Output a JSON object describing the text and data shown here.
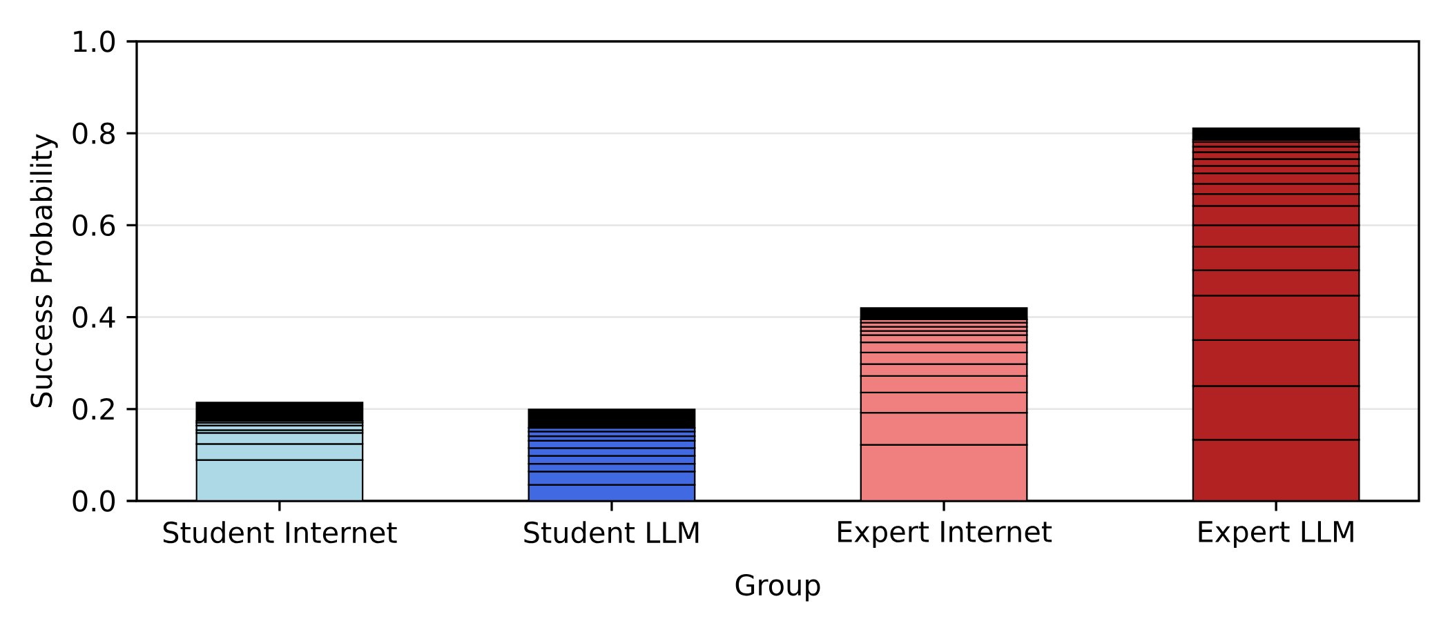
{
  "chart_data": {
    "type": "bar",
    "stacked": true,
    "xlabel": "Group",
    "ylabel": "Success Probability",
    "categories": [
      "Student Internet",
      "Student LLM",
      "Expert Internet",
      "Expert LLM"
    ],
    "ylim": [
      0,
      1
    ],
    "yticks": [
      {
        "value": 0,
        "label": "0.0"
      },
      {
        "value": 0.2,
        "label": "0.2"
      },
      {
        "value": 0.4,
        "label": "0.4"
      },
      {
        "value": 0.6,
        "label": "0.6"
      },
      {
        "value": 0.8,
        "label": "0.8"
      },
      {
        "value": 1,
        "label": "1.0"
      }
    ],
    "grid": "y",
    "series": [
      {
        "values": [
          0.089,
          0.035,
          0.122,
          0.133
        ],
        "colors": [
          "#add8e6",
          "#4169e1",
          "#f08080",
          "#b22222"
        ]
      },
      {
        "values": [
          0.035,
          0.029,
          0.07,
          0.117
        ],
        "colors": [
          "#add8e6",
          "#4169e1",
          "#f08080",
          "#b22222"
        ]
      },
      {
        "values": [
          0.024,
          0.017,
          0.044,
          0.1
        ],
        "colors": [
          "#add8e6",
          "#4169e1",
          "#f08080",
          "#b22222"
        ]
      },
      {
        "values": [
          0.006,
          0.017,
          0.036,
          0.097
        ],
        "colors": [
          "#add8e6",
          "#4169e1",
          "#f08080",
          "#b22222"
        ]
      },
      {
        "values": [
          0.01,
          0.017,
          0.026,
          0.055
        ],
        "colors": [
          "#add8e6",
          "#4169e1",
          "#f08080",
          "#b22222"
        ]
      },
      {
        "values": [
          0.006,
          0.016,
          0.025,
          0.051
        ],
        "colors": [
          "#add8e6",
          "#4169e1",
          "#f08080",
          "#b22222"
        ]
      },
      {
        "values": [
          0.004,
          0.01,
          0.022,
          0.047
        ],
        "colors": [
          "#add8e6",
          "#4169e1",
          "#f08080",
          "#b22222"
        ]
      },
      {
        "values": [
          0.04,
          0.01,
          0.016,
          0.042
        ],
        "colors": [
          "#000000",
          "#4169e1",
          "#f08080",
          "#b22222"
        ]
      },
      {
        "values": [
          null,
          0.008,
          0.009,
          0.026
        ],
        "colors": [
          null,
          "#4169e1",
          "#f08080",
          "#b22222"
        ]
      },
      {
        "values": [
          null,
          0.04,
          0.009,
          0.022
        ],
        "colors": [
          null,
          "#000000",
          "#f08080",
          "#b22222"
        ]
      },
      {
        "values": [
          null,
          null,
          0.009,
          0.023
        ],
        "colors": [
          null,
          null,
          "#f08080",
          "#b22222"
        ]
      },
      {
        "values": [
          null,
          null,
          0.007,
          0.016
        ],
        "colors": [
          null,
          null,
          "#f08080",
          "#b22222"
        ]
      },
      {
        "values": [
          null,
          null,
          0.025,
          0.015
        ],
        "colors": [
          null,
          null,
          "#000000",
          "#b22222"
        ]
      },
      {
        "values": [
          null,
          null,
          null,
          0.015
        ],
        "colors": [
          null,
          null,
          null,
          "#b22222"
        ]
      },
      {
        "values": [
          null,
          null,
          null,
          0.012
        ],
        "colors": [
          null,
          null,
          null,
          "#b22222"
        ]
      },
      {
        "values": [
          null,
          null,
          null,
          0.01
        ],
        "colors": [
          null,
          null,
          null,
          "#b22222"
        ]
      },
      {
        "values": [
          null,
          null,
          null,
          0.005
        ],
        "colors": [
          null,
          null,
          null,
          "#b22222"
        ]
      },
      {
        "values": [
          null,
          null,
          null,
          0.025
        ],
        "colors": [
          null,
          null,
          null,
          "#000000"
        ]
      }
    ]
  }
}
